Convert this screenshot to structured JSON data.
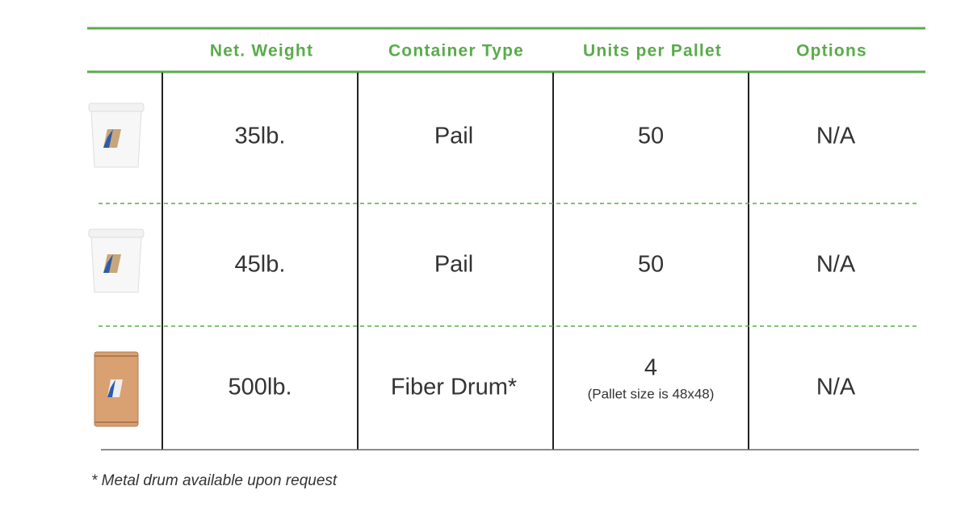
{
  "table": {
    "headers": [
      "Net. Weight",
      "Container Type",
      "Units per Pallet",
      "Options"
    ],
    "rows": [
      {
        "net_weight": "35lb.",
        "container_type": "Pail",
        "units_per_pallet": "50",
        "options": "N/A"
      },
      {
        "net_weight": "45lb.",
        "container_type": "Pail",
        "units_per_pallet": "50",
        "options": "N/A"
      },
      {
        "net_weight": "500lb.",
        "container_type": "Fiber Drum*",
        "units_per_pallet": "4",
        "units_note": "(Pallet size is 48x48)",
        "options": "N/A"
      }
    ]
  },
  "footnote": "* Metal drum available upon request"
}
